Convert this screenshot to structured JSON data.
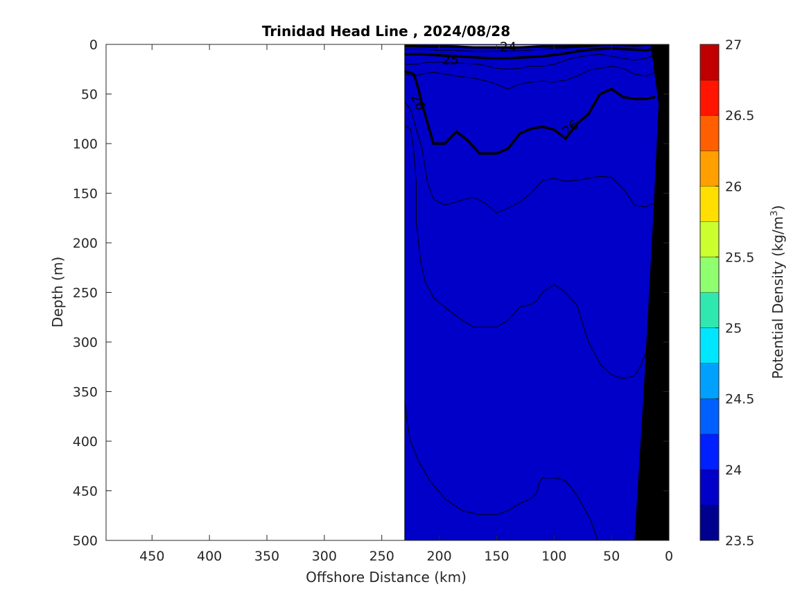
{
  "chart_data": {
    "type": "contour",
    "title": "Trinidad Head Line , 2024/08/28",
    "xlabel": "Offshore Distance (km)",
    "ylabel": "Depth (m)",
    "colorbar_label_base": "Potential Density (kg/m",
    "colorbar_label_sup": "3",
    "colorbar_label_close": ")",
    "xlim": [
      490,
      0
    ],
    "ylim": [
      0,
      500
    ],
    "x_reversed": true,
    "y_reversed": true,
    "xticks": [
      "450",
      "400",
      "350",
      "300",
      "250",
      "200",
      "150",
      "100",
      "50",
      "0"
    ],
    "yticks": [
      "0",
      "50",
      "100",
      "150",
      "200",
      "250",
      "300",
      "350",
      "400",
      "450",
      "500"
    ],
    "colorbar_ticks": [
      "23.5",
      "24",
      "24.5",
      "25",
      "25.5",
      "26",
      "26.5",
      "27"
    ],
    "colorbar_range": [
      23.5,
      27
    ],
    "colorbar_levels": [
      {
        "lo": 23.5,
        "hi": 23.75,
        "color": "#00008f"
      },
      {
        "lo": 23.75,
        "hi": 24.0,
        "color": "#0000c8"
      },
      {
        "lo": 24.0,
        "hi": 24.25,
        "color": "#0020ff"
      },
      {
        "lo": 24.25,
        "hi": 24.5,
        "color": "#0060ff"
      },
      {
        "lo": 24.5,
        "hi": 24.75,
        "color": "#00a0ff"
      },
      {
        "lo": 24.75,
        "hi": 25.0,
        "color": "#00e6ff"
      },
      {
        "lo": 25.0,
        "hi": 25.25,
        "color": "#2ee8b0"
      },
      {
        "lo": 25.25,
        "hi": 25.5,
        "color": "#8fff6f"
      },
      {
        "lo": 25.5,
        "hi": 25.75,
        "color": "#ccff2e"
      },
      {
        "lo": 25.75,
        "hi": 26.0,
        "color": "#ffdf00"
      },
      {
        "lo": 26.0,
        "hi": 26.25,
        "color": "#ff9f00"
      },
      {
        "lo": 26.25,
        "hi": 26.5,
        "color": "#ff5f00"
      },
      {
        "lo": 26.5,
        "hi": 26.75,
        "color": "#ff1500"
      },
      {
        "lo": 26.75,
        "hi": 27.0,
        "color": "#c00000"
      }
    ],
    "contour_labels": [
      "24",
      "25",
      "26",
      "26"
    ],
    "data_extent_km": 230,
    "bands": [
      {
        "level": "26.75-27.0",
        "color": "#c00000",
        "boundary": [
          [
            230,
            358
          ],
          [
            228,
            380
          ],
          [
            225,
            400
          ],
          [
            218,
            420
          ],
          [
            208,
            440
          ],
          [
            195,
            458
          ],
          [
            180,
            470
          ],
          [
            165,
            474
          ],
          [
            150,
            474
          ],
          [
            140,
            470
          ],
          [
            130,
            463
          ],
          [
            120,
            458
          ],
          [
            115,
            452
          ],
          [
            113,
            442
          ],
          [
            110,
            437
          ],
          [
            100,
            437
          ],
          [
            95,
            438
          ],
          [
            90,
            440
          ],
          [
            85,
            447
          ],
          [
            80,
            455
          ],
          [
            75,
            465
          ],
          [
            68,
            480
          ],
          [
            62,
            500
          ]
        ]
      },
      {
        "level": "26.5-26.75",
        "color": "#ff1500",
        "boundary": [
          [
            230,
            82
          ],
          [
            225,
            85
          ],
          [
            222,
            108
          ],
          [
            220,
            140
          ],
          [
            220,
            180
          ],
          [
            218,
            200
          ],
          [
            216,
            220
          ],
          [
            212,
            240
          ],
          [
            205,
            255
          ],
          [
            195,
            265
          ],
          [
            180,
            278
          ],
          [
            170,
            285
          ],
          [
            160,
            285
          ],
          [
            150,
            285
          ],
          [
            140,
            278
          ],
          [
            130,
            265
          ],
          [
            120,
            262
          ],
          [
            115,
            258
          ],
          [
            110,
            250
          ],
          [
            100,
            242
          ],
          [
            90,
            250
          ],
          [
            80,
            263
          ],
          [
            75,
            282
          ],
          [
            70,
            300
          ],
          [
            60,
            322
          ],
          [
            50,
            333
          ],
          [
            40,
            337
          ],
          [
            30,
            334
          ],
          [
            25,
            325
          ],
          [
            20,
            310
          ]
        ]
      },
      {
        "level": "26.25-26.5",
        "color": "#ff5f00",
        "boundary": [
          [
            230,
            58
          ],
          [
            225,
            65
          ],
          [
            220,
            85
          ],
          [
            215,
            105
          ],
          [
            210,
            140
          ],
          [
            205,
            156
          ],
          [
            195,
            162
          ],
          [
            180,
            157
          ],
          [
            170,
            154
          ],
          [
            160,
            160
          ],
          [
            150,
            170
          ],
          [
            140,
            165
          ],
          [
            130,
            159
          ],
          [
            120,
            150
          ],
          [
            110,
            137
          ],
          [
            100,
            135
          ],
          [
            90,
            138
          ],
          [
            80,
            137
          ],
          [
            70,
            135
          ],
          [
            60,
            133
          ],
          [
            50,
            134
          ],
          [
            40,
            145
          ],
          [
            30,
            162
          ],
          [
            20,
            164
          ],
          [
            14,
            160
          ]
        ]
      },
      {
        "level": "26.0-26.25",
        "color": "#ff9f00",
        "boundary": [
          [
            230,
            27
          ],
          [
            222,
            30
          ],
          [
            218,
            45
          ],
          [
            215,
            60
          ],
          [
            210,
            80
          ],
          [
            205,
            100
          ],
          [
            195,
            100
          ],
          [
            185,
            88
          ],
          [
            175,
            97
          ],
          [
            165,
            110
          ],
          [
            150,
            110
          ],
          [
            140,
            105
          ],
          [
            130,
            90
          ],
          [
            120,
            85
          ],
          [
            110,
            83
          ],
          [
            100,
            86
          ],
          [
            90,
            95
          ],
          [
            80,
            80
          ],
          [
            70,
            70
          ],
          [
            60,
            50
          ],
          [
            50,
            45
          ],
          [
            40,
            53
          ],
          [
            30,
            55
          ],
          [
            20,
            55
          ],
          [
            12,
            53
          ]
        ]
      },
      {
        "level": "25.75-26.0",
        "color": "#ffdf00",
        "boundary": [
          [
            230,
            30
          ],
          [
            222,
            32
          ],
          [
            215,
            30
          ],
          [
            205,
            28
          ],
          [
            195,
            30
          ],
          [
            185,
            32
          ],
          [
            170,
            34
          ],
          [
            155,
            38
          ],
          [
            140,
            45
          ],
          [
            130,
            40
          ],
          [
            120,
            38
          ],
          [
            110,
            37
          ],
          [
            100,
            38
          ],
          [
            90,
            36
          ],
          [
            80,
            32
          ],
          [
            70,
            26
          ],
          [
            60,
            24
          ],
          [
            50,
            22
          ],
          [
            40,
            24
          ],
          [
            30,
            30
          ],
          [
            20,
            32
          ],
          [
            12,
            28
          ]
        ]
      },
      {
        "level": "25.5-25.75",
        "color": "#ccff2e",
        "boundary": [
          [
            230,
            20
          ],
          [
            220,
            20
          ],
          [
            210,
            18
          ],
          [
            195,
            18
          ],
          [
            180,
            19
          ],
          [
            165,
            20
          ],
          [
            150,
            24
          ],
          [
            140,
            25
          ],
          [
            130,
            24
          ],
          [
            120,
            22
          ],
          [
            110,
            22
          ],
          [
            100,
            20
          ],
          [
            85,
            14
          ],
          [
            70,
            11
          ],
          [
            60,
            10
          ],
          [
            50,
            12
          ],
          [
            40,
            14
          ],
          [
            30,
            16
          ],
          [
            20,
            14
          ],
          [
            10,
            10
          ]
        ]
      },
      {
        "level": "24.75-25.0",
        "color": "#00e6ff",
        "boundary": [
          [
            230,
            10
          ],
          [
            215,
            10
          ],
          [
            200,
            11
          ],
          [
            185,
            12
          ],
          [
            170,
            13
          ],
          [
            155,
            14
          ],
          [
            140,
            14
          ],
          [
            125,
            13
          ],
          [
            110,
            12
          ],
          [
            95,
            10
          ],
          [
            80,
            7
          ],
          [
            65,
            5
          ],
          [
            50,
            4
          ],
          [
            35,
            5
          ],
          [
            20,
            6
          ],
          [
            10,
            4
          ]
        ]
      },
      {
        "level": "24.25-24.5",
        "color": "#0060ff",
        "boundary": [
          [
            230,
            5
          ],
          [
            215,
            5
          ],
          [
            200,
            6
          ],
          [
            185,
            6
          ],
          [
            170,
            7
          ],
          [
            155,
            7
          ],
          [
            140,
            7
          ],
          [
            125,
            6
          ],
          [
            110,
            5
          ],
          [
            95,
            4
          ],
          [
            80,
            3
          ],
          [
            65,
            2
          ],
          [
            50,
            1
          ],
          [
            30,
            2
          ],
          [
            15,
            1
          ]
        ]
      },
      {
        "level": "23.75-24.0",
        "color": "#0000c8",
        "boundary": [
          [
            230,
            1.5
          ],
          [
            210,
            2
          ],
          [
            190,
            2
          ],
          [
            170,
            3
          ],
          [
            150,
            3
          ],
          [
            130,
            3
          ],
          [
            110,
            2
          ],
          [
            90,
            2
          ],
          [
            70,
            1
          ],
          [
            50,
            0.5
          ],
          [
            30,
            0.5
          ],
          [
            10,
            0.3
          ]
        ]
      }
    ]
  }
}
